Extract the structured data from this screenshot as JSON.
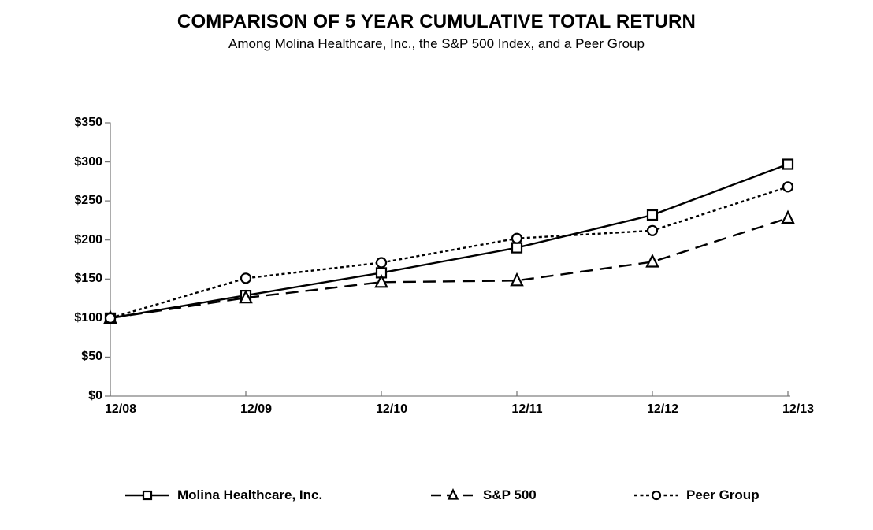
{
  "title": "COMPARISON OF 5 YEAR CUMULATIVE TOTAL RETURN",
  "subtitle": "Among Molina Healthcare, Inc., the S&P 500 Index, and a Peer Group",
  "chart_data": {
    "type": "line",
    "categories": [
      "12/08",
      "12/09",
      "12/10",
      "12/11",
      "12/12",
      "12/13"
    ],
    "x_tick_labels": [
      "12/08",
      "12/09",
      "12/10",
      "12/11",
      "12/12",
      "12/13"
    ],
    "y_tick_labels": [
      "$0",
      "$50",
      "$100",
      "$150",
      "$200",
      "$250",
      "$300",
      "$350"
    ],
    "ylim": [
      0,
      350
    ],
    "y_tick_step": 50,
    "xlabel": "",
    "ylabel": "",
    "grid": false,
    "legend_position": "bottom",
    "colors": {
      "line": "#000000",
      "axis": "#808080",
      "text": "#000000",
      "background": "#ffffff"
    },
    "series": [
      {
        "name": "Molina Healthcare, Inc.",
        "marker": "square",
        "line_style": "solid",
        "values": [
          100,
          129,
          158,
          190,
          232,
          297
        ]
      },
      {
        "name": "S&P 500",
        "marker": "triangle",
        "line_style": "dashed",
        "values": [
          100,
          126,
          146,
          148,
          172,
          228
        ]
      },
      {
        "name": "Peer Group",
        "marker": "circle",
        "line_style": "dotted",
        "values": [
          100,
          151,
          171,
          202,
          212,
          268
        ]
      }
    ]
  }
}
